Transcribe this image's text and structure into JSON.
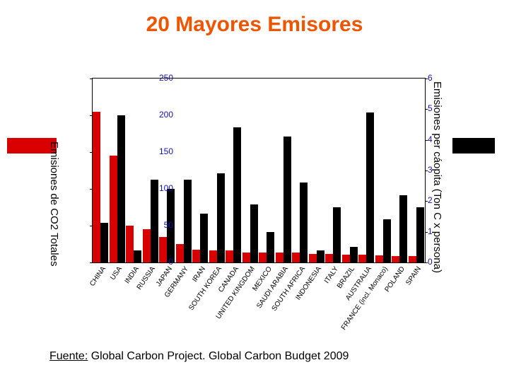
{
  "title": {
    "text": "20 Mayores Emisores",
    "color": "#ed5500"
  },
  "legend_bars": {
    "left_color": "#d80000",
    "right_color": "#000000"
  },
  "left_axis_label": "Emisiones de CO2 Totales",
  "right_axis_label": "Emisiones per cáopita (Ton C x persona)",
  "source_prefix": "Fuente:",
  "source_text": " Global Carbon Project. Global Carbon Budget 2009",
  "chart": {
    "left_scale": {
      "max": 250,
      "ticks": [
        0,
        50,
        100,
        150,
        200,
        250
      ],
      "label_color": "#1214aa"
    },
    "right_scale": {
      "max": 6,
      "ticks": [
        0,
        1,
        2,
        3,
        4,
        5,
        6
      ],
      "label_color": "#1214aa"
    },
    "total_color": "#d80000",
    "percap_color": "#000000",
    "categories": [
      "CHINA",
      "USA",
      "INDIA",
      "RUSSIA",
      "JAPAN",
      "GERMANY",
      "IRAN",
      "SOUTH KOREA",
      "CANADA",
      "UNITED KINGDOM",
      "MEXICO",
      "SAUDI ARABIA",
      "SOUTH AFRICA",
      "INDONESIA",
      "ITALY",
      "BRAZIL",
      "AUSTRALIA",
      "FRANCE (incl. Monaco)",
      "POLAND",
      "SPAIN"
    ],
    "total_vals": [
      205,
      145,
      50,
      45,
      35,
      25,
      17,
      16,
      16,
      13,
      13,
      13,
      13,
      12,
      12,
      11,
      11,
      10,
      9,
      9
    ],
    "percap_vals": [
      1.3,
      4.8,
      0.4,
      2.7,
      2.4,
      2.7,
      1.6,
      2.9,
      4.4,
      1.9,
      1.0,
      4.1,
      2.6,
      0.4,
      1.8,
      0.5,
      4.9,
      1.4,
      2.2,
      1.8
    ]
  }
}
